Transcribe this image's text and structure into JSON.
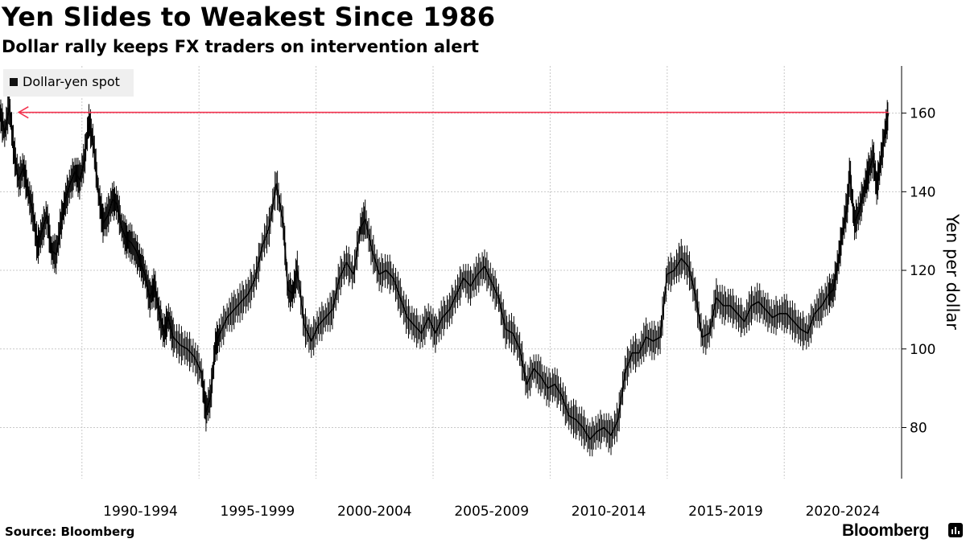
{
  "header": {
    "title": "Yen Slides to Weakest Since 1986",
    "subtitle": "Dollar rally keeps FX traders on intervention alert"
  },
  "legend": {
    "label": "Dollar-yen spot"
  },
  "footer": {
    "source": "Source: Bloomberg",
    "brand": "Bloomberg"
  },
  "colors": {
    "series": "#000000",
    "grid": "#c8c8c8",
    "reference_line": "#f4334f",
    "legend_bg": "#efefef"
  },
  "chart_data": {
    "type": "line",
    "title": "Yen Slides to Weakest Since 1986",
    "subtitle": "Dollar rally keeps FX traders on intervention alert",
    "xlabel": "",
    "ylabel": "Yen per dollar",
    "xlim": [
      1986.5,
      2024.6
    ],
    "ylim": [
      67,
      172
    ],
    "yticks": [
      80,
      100,
      120,
      140,
      160
    ],
    "grid": true,
    "legend": "top-left",
    "x_tick_labels": [
      {
        "label": "1990-1994",
        "year": 1992.5
      },
      {
        "label": "1995-1999",
        "year": 1997.5
      },
      {
        "label": "2000-2004",
        "year": 2002.5
      },
      {
        "label": "2005-2009",
        "year": 2007.5
      },
      {
        "label": "2010-2014",
        "year": 2012.5
      },
      {
        "label": "2015-2019",
        "year": 2017.5
      },
      {
        "label": "2020-2024",
        "year": 2022.5
      }
    ],
    "vertical_gridlines_years": [
      1990,
      1995,
      2000,
      2005,
      2010,
      2015,
      2020
    ],
    "reference_line": {
      "value": 160.2,
      "from_year": 2024.45,
      "to_year": 1987.3,
      "direction": "left-arrow"
    },
    "series": [
      {
        "name": "Dollar-yen spot",
        "x": [
          1986.5,
          1986.7,
          1986.9,
          1987.1,
          1987.3,
          1987.5,
          1987.7,
          1987.9,
          1988.1,
          1988.3,
          1988.5,
          1988.7,
          1988.9,
          1989.1,
          1989.3,
          1989.5,
          1989.7,
          1989.9,
          1990.1,
          1990.3,
          1990.5,
          1990.7,
          1990.9,
          1991.1,
          1991.3,
          1991.5,
          1991.7,
          1991.9,
          1992.1,
          1992.3,
          1992.5,
          1992.7,
          1992.9,
          1993.1,
          1993.3,
          1993.5,
          1993.7,
          1993.9,
          1994.2,
          1994.5,
          1994.8,
          1995.1,
          1995.3,
          1995.5,
          1995.7,
          1995.9,
          1996.2,
          1996.5,
          1996.8,
          1997.1,
          1997.4,
          1997.7,
          1998.0,
          1998.3,
          1998.6,
          1998.8,
          1999.0,
          1999.2,
          1999.5,
          1999.8,
          2000.1,
          2000.4,
          2000.7,
          2001.0,
          2001.3,
          2001.6,
          2001.9,
          2002.1,
          2002.4,
          2002.7,
          2003.0,
          2003.3,
          2003.6,
          2003.9,
          2004.2,
          2004.5,
          2004.8,
          2005.1,
          2005.4,
          2005.7,
          2006.0,
          2006.3,
          2006.6,
          2006.9,
          2007.2,
          2007.5,
          2007.8,
          2008.1,
          2008.4,
          2008.7,
          2009.0,
          2009.3,
          2009.6,
          2009.9,
          2010.2,
          2010.5,
          2010.8,
          2011.1,
          2011.4,
          2011.7,
          2012.0,
          2012.3,
          2012.6,
          2012.9,
          2013.2,
          2013.5,
          2013.8,
          2014.1,
          2014.4,
          2014.7,
          2015.0,
          2015.3,
          2015.6,
          2015.9,
          2016.2,
          2016.5,
          2016.8,
          2017.1,
          2017.4,
          2017.7,
          2018.0,
          2018.3,
          2018.6,
          2018.9,
          2019.2,
          2019.5,
          2019.8,
          2020.1,
          2020.4,
          2020.7,
          2021.0,
          2021.3,
          2021.6,
          2021.9,
          2022.1,
          2022.3,
          2022.5,
          2022.7,
          2022.8,
          2023.0,
          2023.2,
          2023.4,
          2023.6,
          2023.8,
          2023.95,
          2024.1,
          2024.3,
          2024.45
        ],
        "values": [
          160,
          155,
          162,
          150,
          143,
          146,
          140,
          135,
          126,
          130,
          134,
          125,
          124,
          132,
          138,
          142,
          145,
          143,
          148,
          158,
          152,
          140,
          132,
          134,
          138,
          137,
          131,
          128,
          127,
          125,
          122,
          119,
          113,
          116,
          109,
          104,
          108,
          103,
          101,
          100,
          98,
          94,
          84,
          88,
          101,
          104,
          108,
          110,
          112,
          114,
          118,
          126,
          131,
          142,
          132,
          115,
          114,
          120,
          106,
          102,
          106,
          108,
          110,
          118,
          122,
          119,
          131,
          133,
          125,
          119,
          120,
          118,
          113,
          108,
          106,
          104,
          108,
          104,
          108,
          110,
          114,
          118,
          116,
          119,
          121,
          117,
          113,
          105,
          104,
          100,
          91,
          95,
          93,
          90,
          91,
          88,
          83,
          82,
          80,
          77,
          79,
          80,
          78,
          82,
          94,
          99,
          99,
          103,
          102,
          103,
          119,
          120,
          123,
          121,
          114,
          103,
          104,
          113,
          111,
          111,
          109,
          107,
          111,
          112,
          110,
          108,
          109,
          109,
          107,
          105,
          104,
          109,
          111,
          114,
          115,
          122,
          130,
          137,
          145,
          132,
          135,
          140,
          145,
          149,
          141,
          147,
          155,
          160
        ]
      }
    ]
  }
}
